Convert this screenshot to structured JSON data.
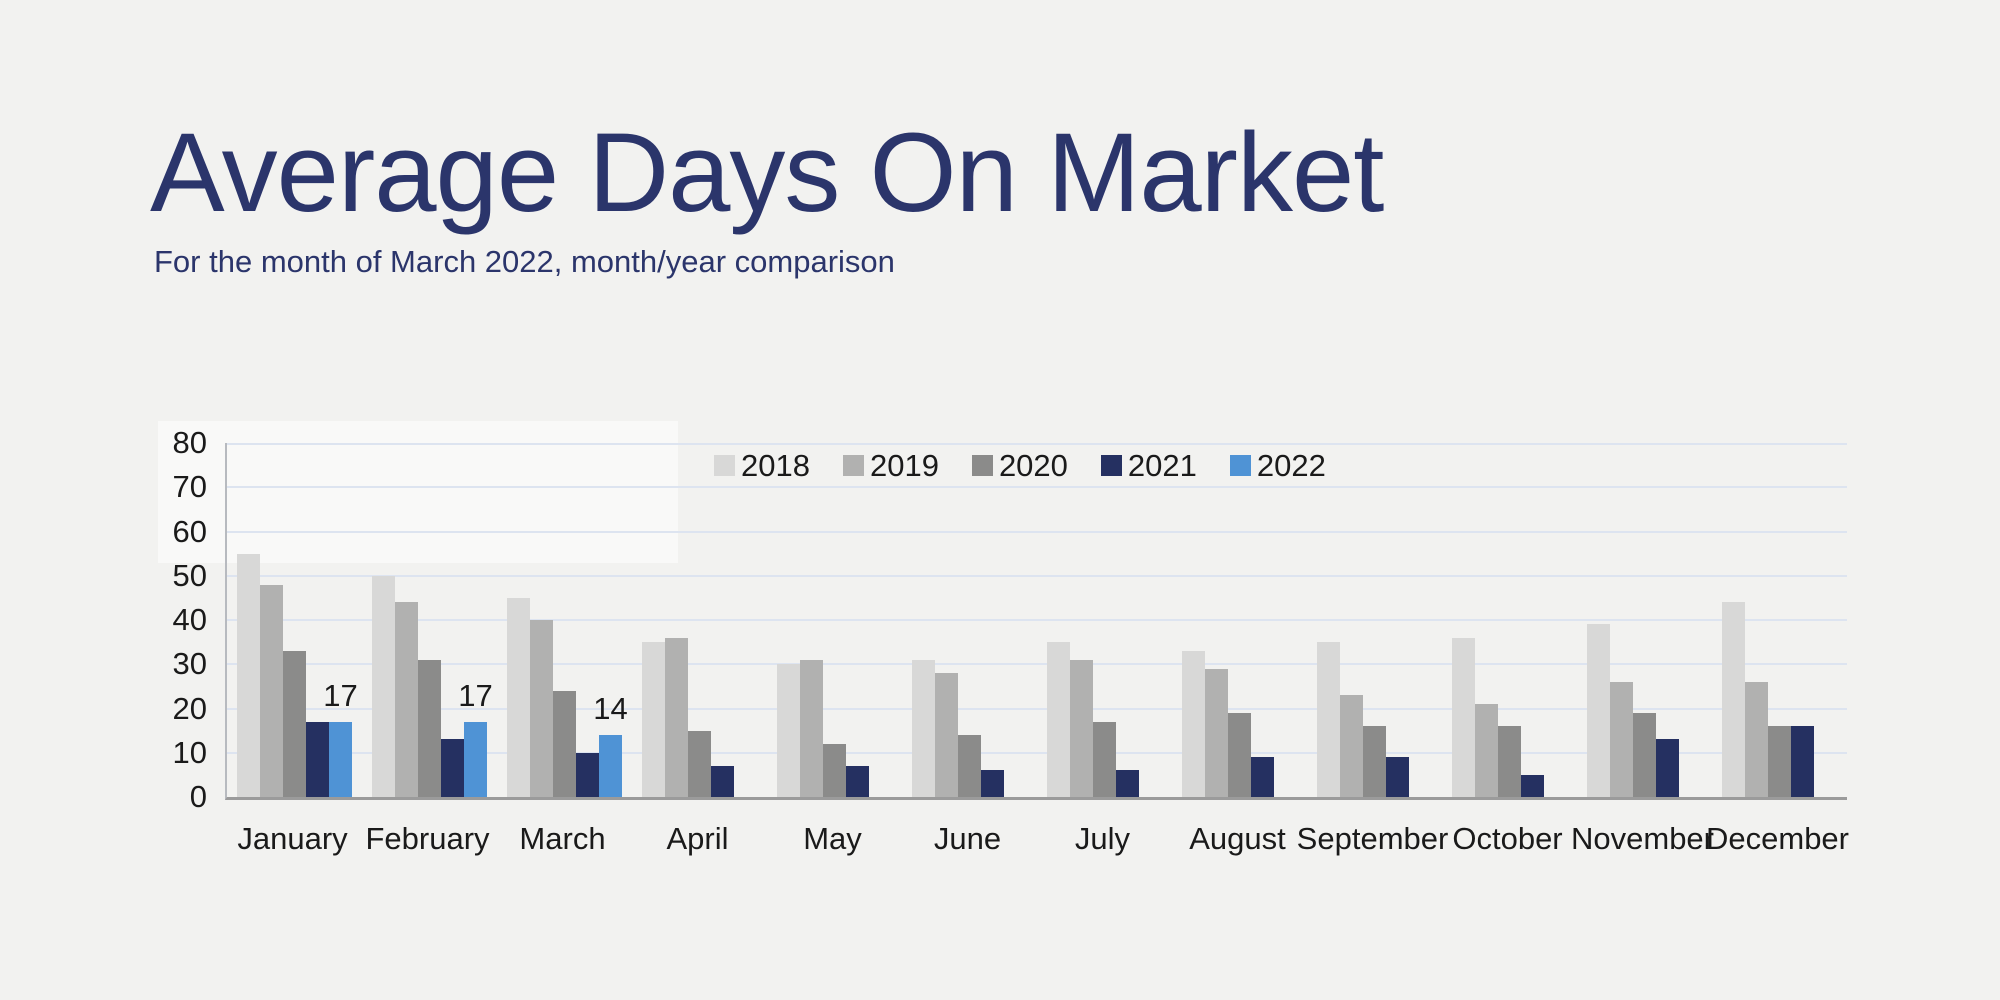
{
  "header": {
    "title": "Average Days On Market",
    "subtitle": "For the month of March 2022, month/year comparison"
  },
  "colors": {
    "background": "#f2f2f0",
    "title_text": "#2b356b",
    "axis_text": "#1a1a1a",
    "gridline": "#dde4f0",
    "bottom_axis_line": "#9b9b9b",
    "left_axis_line": "#b7babf"
  },
  "chart_data": {
    "type": "bar",
    "title": "Average Days On Market",
    "subtitle": "For the month of March 2022, month/year comparison",
    "categories": [
      "January",
      "February",
      "March",
      "April",
      "May",
      "June",
      "July",
      "August",
      "September",
      "October",
      "November",
      "December"
    ],
    "series": [
      {
        "name": "2018",
        "color": "#d8d8d7",
        "values": [
          55,
          50,
          45,
          35,
          30,
          31,
          35,
          33,
          35,
          36,
          39,
          44
        ]
      },
      {
        "name": "2019",
        "color": "#b1b1b0",
        "values": [
          48,
          44,
          40,
          36,
          31,
          28,
          31,
          29,
          23,
          21,
          26,
          26
        ]
      },
      {
        "name": "2020",
        "color": "#8b8b8a",
        "values": [
          33,
          31,
          24,
          15,
          12,
          14,
          17,
          19,
          16,
          16,
          19,
          16
        ]
      },
      {
        "name": "2021",
        "color": "#253061",
        "values": [
          17,
          13,
          10,
          7,
          7,
          6,
          6,
          9,
          9,
          5,
          13,
          16
        ]
      },
      {
        "name": "2022",
        "color": "#4f93d5",
        "values": [
          17,
          17,
          14,
          null,
          null,
          null,
          null,
          null,
          null,
          null,
          null,
          null
        ]
      }
    ],
    "data_labels": [
      {
        "category": "January",
        "series": "2022",
        "text": "17"
      },
      {
        "category": "February",
        "series": "2022",
        "text": "17"
      },
      {
        "category": "March",
        "series": "2022",
        "text": "14"
      }
    ],
    "ylim": [
      0,
      80
    ],
    "y_ticks": [
      80,
      70,
      60,
      50,
      40,
      30,
      20,
      10,
      0
    ],
    "grid": true,
    "legend_position": "top-center"
  }
}
